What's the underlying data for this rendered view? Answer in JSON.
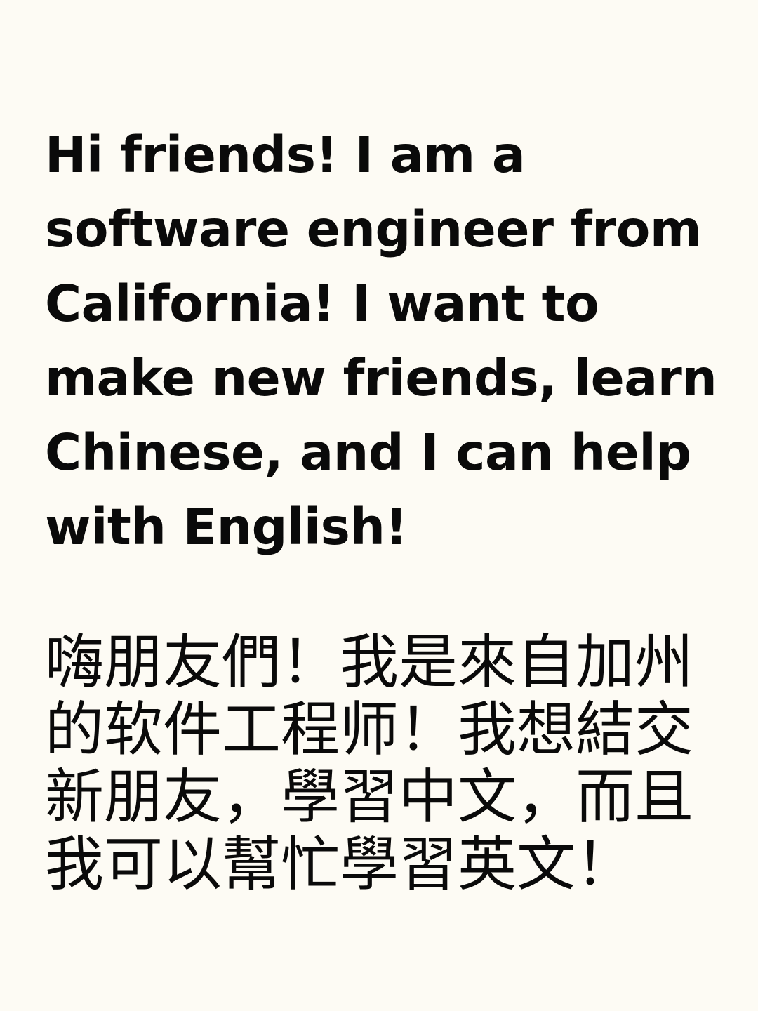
{
  "english_text": {
    "lines": [
      "Hi friends! I am a",
      "software engineer from",
      "California! I want to",
      "make new friends, learn",
      "Chinese, and I can help",
      "with English!"
    ]
  },
  "chinese_text": {
    "lines": [
      "嗨朋友們！我是來自加州",
      "的软件工程师！我想結交",
      "新朋友，學習中文，而且",
      "我可以幫忙學習英文！"
    ]
  },
  "colors": {
    "background": "#fdfbf4",
    "text": "#0a0a0a"
  }
}
